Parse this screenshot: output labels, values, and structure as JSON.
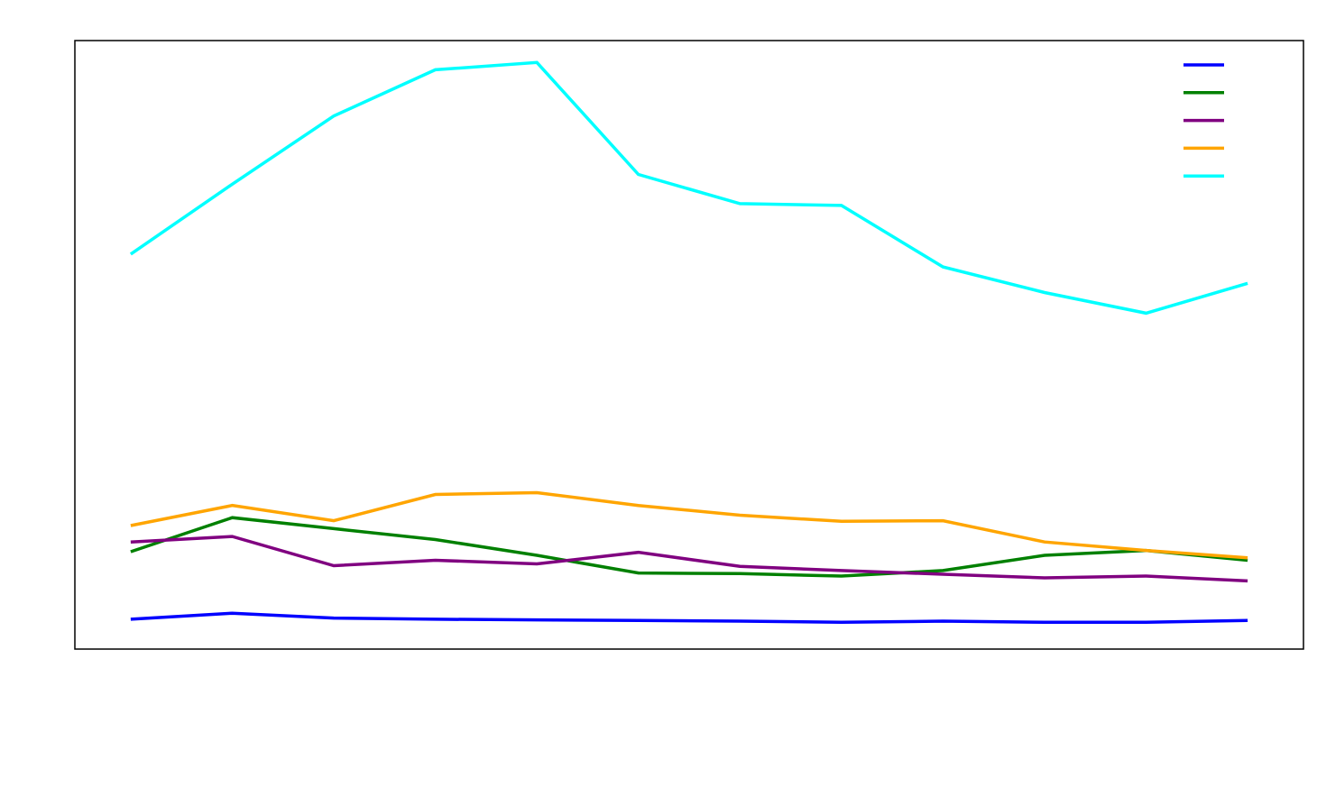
{
  "chart_data": {
    "type": "line",
    "title": "",
    "xlabel": "",
    "ylabel": "",
    "x": [
      0,
      1,
      2,
      3,
      4,
      5,
      6,
      7,
      8,
      9,
      10,
      11
    ],
    "xlim": [
      -0.55,
      11.55
    ],
    "ylim": [
      0,
      100
    ],
    "grid": false,
    "legend_position": "top-right",
    "series": [
      {
        "color": "#0000ff",
        "values": [
          4.9,
          5.9,
          5.1,
          4.9,
          4.8,
          4.7,
          4.6,
          4.4,
          4.6,
          4.4,
          4.4,
          4.7
        ]
      },
      {
        "color": "#008000",
        "values": [
          16.0,
          21.6,
          19.8,
          18.0,
          15.4,
          12.5,
          12.4,
          12.0,
          12.9,
          15.4,
          16.2,
          14.6
        ]
      },
      {
        "color": "#800080",
        "values": [
          17.6,
          18.5,
          13.7,
          14.6,
          14.0,
          15.9,
          13.6,
          12.9,
          12.3,
          11.7,
          12.0,
          11.2
        ]
      },
      {
        "color": "#ffa500",
        "values": [
          20.3,
          23.6,
          21.1,
          25.4,
          25.7,
          23.6,
          22.0,
          21.0,
          21.1,
          17.6,
          16.2,
          15.0
        ]
      },
      {
        "color": "#00ffff",
        "values": [
          64.9,
          76.4,
          87.6,
          95.2,
          96.4,
          78.0,
          73.2,
          72.9,
          62.8,
          58.6,
          55.2,
          60.1
        ]
      }
    ]
  }
}
